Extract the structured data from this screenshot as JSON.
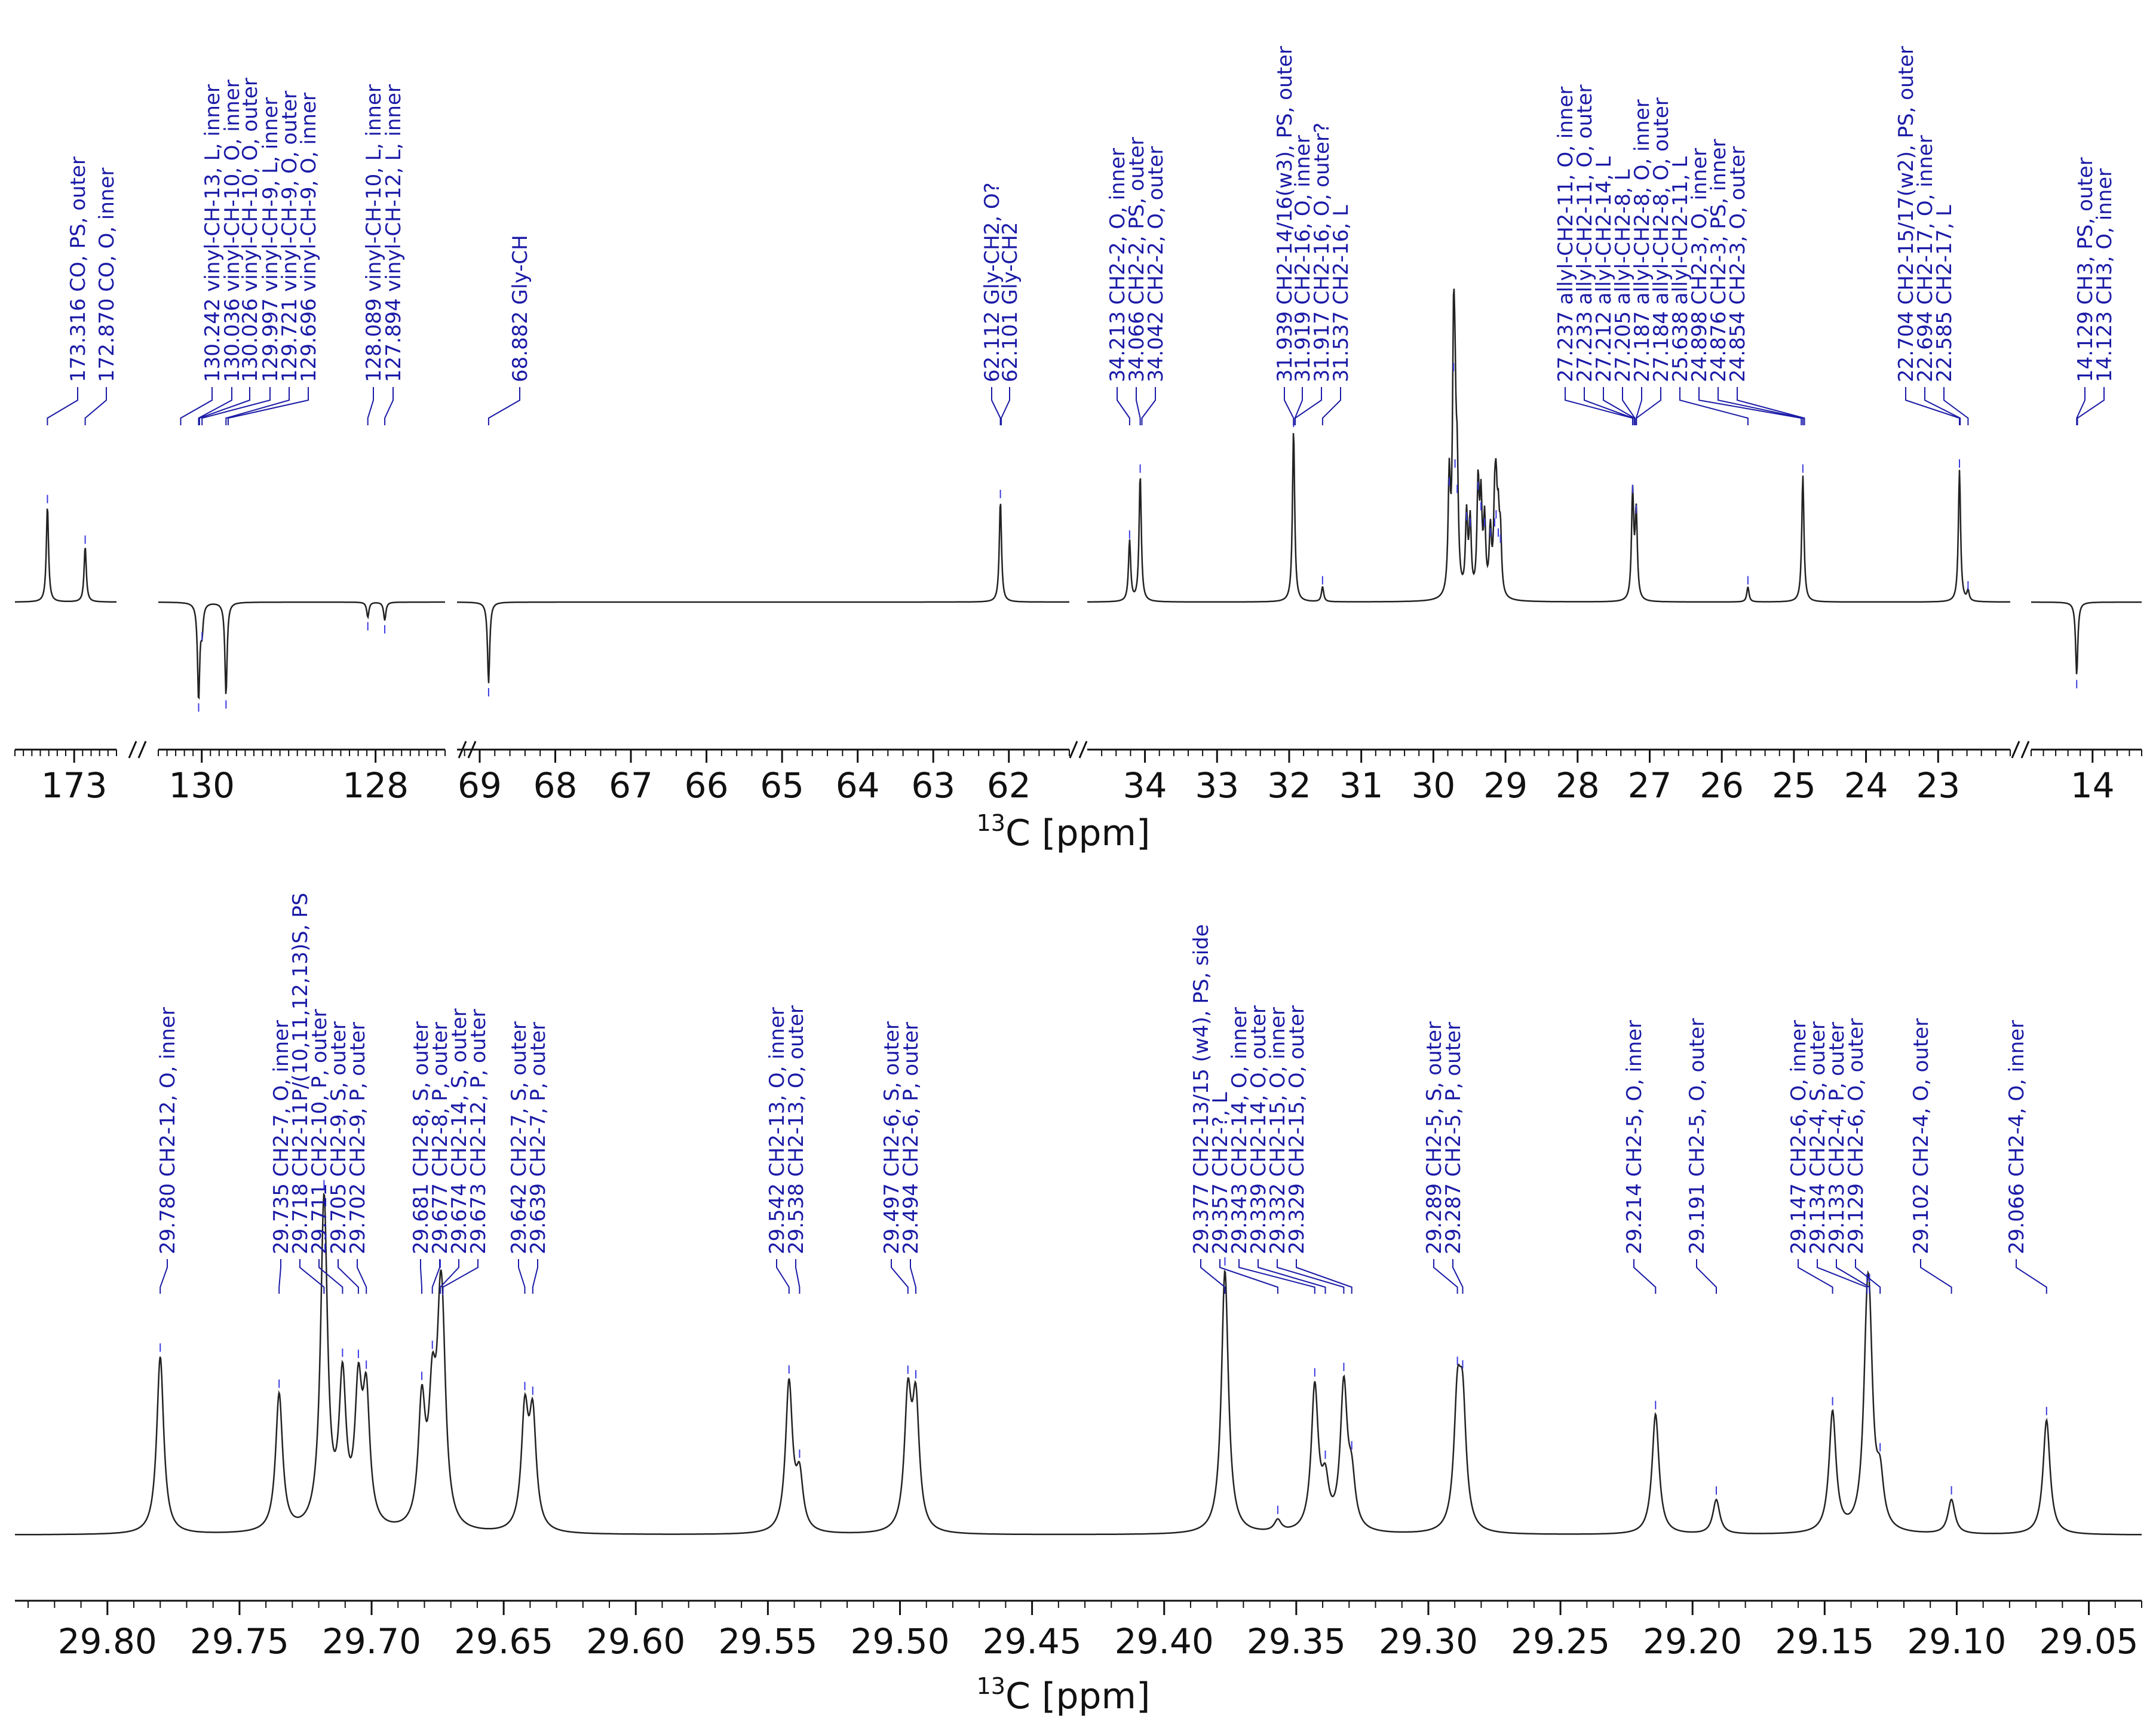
{
  "colors": {
    "label": "#1a1aa6",
    "trace": "#222222",
    "axis": "#111111",
    "marker": "#3a3ae0"
  },
  "chart_data": [
    {
      "type": "line",
      "title": "",
      "xlabel_sup": "13",
      "xlabel_main": "C [ppm]",
      "axis_direction": "decreasing-left-to-right",
      "segments": [
        {
          "xlim": [
            173.7,
            172.5
          ],
          "ticks": [
            "173"
          ],
          "tick_values": [
            173.0
          ]
        },
        {
          "xlim": [
            130.5,
            127.2
          ],
          "ticks": [
            "130",
            "128"
          ],
          "tick_values": [
            130.0,
            128.0
          ]
        },
        {
          "xlim": [
            69.3,
            61.2
          ],
          "ticks": [
            "69",
            "68",
            "67",
            "66",
            "65",
            "64",
            "63",
            "62"
          ],
          "tick_values": [
            69,
            68,
            67,
            66,
            65,
            64,
            63,
            62
          ]
        },
        {
          "xlim": [
            34.8,
            22.0
          ],
          "ticks": [
            "34",
            "33",
            "32",
            "31",
            "30",
            "29",
            "28",
            "27",
            "26",
            "25",
            "24",
            "23"
          ],
          "tick_values": [
            34,
            33,
            32,
            31,
            30,
            29,
            28,
            27,
            26,
            25,
            24,
            23
          ]
        },
        {
          "xlim": [
            14.5,
            13.6
          ],
          "ticks": [
            "14"
          ],
          "tick_values": [
            14
          ]
        }
      ],
      "peak_labels": [
        {
          "ppm": 173.316,
          "text": "173.316 CO, PS, outer"
        },
        {
          "ppm": 172.87,
          "text": "172.870 CO, O, inner"
        },
        {
          "ppm": 130.242,
          "text": "130.242 vinyl-CH-13, L, inner"
        },
        {
          "ppm": 130.036,
          "text": "130.036 vinyl-CH-10, O, inner"
        },
        {
          "ppm": 130.026,
          "text": "130.026 vinyl-CH-10, O, outer"
        },
        {
          "ppm": 129.997,
          "text": "129.997 vinyl-CH-9, L, inner"
        },
        {
          "ppm": 129.721,
          "text": "129.721 vinyl-CH-9, O, outer"
        },
        {
          "ppm": 129.696,
          "text": "129.696 vinyl-CH-9, O, inner"
        },
        {
          "ppm": 128.089,
          "text": "128.089 vinyl-CH-10, L, inner"
        },
        {
          "ppm": 127.894,
          "text": "127.894 vinyl-CH-12, L, inner"
        },
        {
          "ppm": 68.882,
          "text": "68.882 Gly-CH"
        },
        {
          "ppm": 62.112,
          "text": "62.112 Gly-CH2, O?"
        },
        {
          "ppm": 62.101,
          "text": "62.101 Gly-CH2"
        },
        {
          "ppm": 34.213,
          "text": "34.213 CH2-2, O, inner"
        },
        {
          "ppm": 34.066,
          "text": "34.066 CH2-2, PS, outer"
        },
        {
          "ppm": 34.042,
          "text": "34.042 CH2-2, O, outer"
        },
        {
          "ppm": 31.939,
          "text": "31.939 CH2-14/16(w3), PS, outer"
        },
        {
          "ppm": 31.919,
          "text": "31.919 CH2-16, O, inner"
        },
        {
          "ppm": 31.917,
          "text": "31.917 CH2-16, O, outer?"
        },
        {
          "ppm": 31.537,
          "text": "31.537 CH2-16, L"
        },
        {
          "ppm": 27.237,
          "text": "27.237 allyl-CH2-11, O, inner"
        },
        {
          "ppm": 27.233,
          "text": "27.233 allyl-CH2-11, O, outer"
        },
        {
          "ppm": 27.212,
          "text": "27.212 allyl-CH2-14, L"
        },
        {
          "ppm": 27.205,
          "text": "27.205 allyl-CH2-8, L"
        },
        {
          "ppm": 27.187,
          "text": "27.187 allyl-CH2-8, O, inner"
        },
        {
          "ppm": 27.184,
          "text": "27.184 allyl-CH2-8, O, outer"
        },
        {
          "ppm": 25.638,
          "text": "25.638 allyl-CH2-11, L"
        },
        {
          "ppm": 24.898,
          "text": "24.898 CH2-3, O, inner"
        },
        {
          "ppm": 24.876,
          "text": "24.876 CH2-3, PS, inner"
        },
        {
          "ppm": 24.854,
          "text": "24.854 CH2-3, O, outer"
        },
        {
          "ppm": 22.704,
          "text": "22.704 CH2-15/17(w2), PS, outer"
        },
        {
          "ppm": 22.694,
          "text": "22.694 CH2-17, O, inner"
        },
        {
          "ppm": 22.585,
          "text": "22.585 CH2-17, L"
        },
        {
          "ppm": 14.129,
          "text": "14.129 CH3, PS, outer"
        },
        {
          "ppm": 14.123,
          "text": "14.123 CH3, O, inner"
        }
      ],
      "peaks": [
        {
          "ppm": 173.316,
          "h": 0.95
        },
        {
          "ppm": 172.87,
          "h": 0.55
        },
        {
          "ppm": 130.036,
          "h": -0.95
        },
        {
          "ppm": 129.997,
          "h": -0.25
        },
        {
          "ppm": 129.721,
          "h": -0.92
        },
        {
          "ppm": 128.089,
          "h": -0.15
        },
        {
          "ppm": 127.894,
          "h": -0.18
        },
        {
          "ppm": 68.882,
          "h": -0.8
        },
        {
          "ppm": 62.112,
          "h": 1.0
        },
        {
          "ppm": 34.213,
          "h": 0.6
        },
        {
          "ppm": 34.066,
          "h": 1.25
        },
        {
          "ppm": 31.939,
          "h": 1.7
        },
        {
          "ppm": 31.537,
          "h": 0.15
        },
        {
          "ppm": 29.78,
          "h": 1.12
        },
        {
          "ppm": 29.72,
          "h": 2.25
        },
        {
          "ppm": 29.7,
          "h": 1.3
        },
        {
          "ppm": 29.67,
          "h": 1.05
        },
        {
          "ppm": 29.54,
          "h": 0.78
        },
        {
          "ppm": 29.49,
          "h": 0.72
        },
        {
          "ppm": 29.38,
          "h": 1.08
        },
        {
          "ppm": 29.34,
          "h": 0.88
        },
        {
          "ppm": 29.29,
          "h": 0.72
        },
        {
          "ppm": 29.21,
          "h": 0.62
        },
        {
          "ppm": 29.15,
          "h": 0.72
        },
        {
          "ppm": 29.13,
          "h": 0.8
        },
        {
          "ppm": 29.1,
          "h": 0.62
        },
        {
          "ppm": 29.07,
          "h": 0.56
        },
        {
          "ppm": 27.237,
          "h": 1.05
        },
        {
          "ppm": 27.187,
          "h": 0.85
        },
        {
          "ppm": 25.638,
          "h": 0.15
        },
        {
          "ppm": 24.876,
          "h": 1.25
        },
        {
          "ppm": 22.704,
          "h": 1.3
        },
        {
          "ppm": 22.585,
          "h": 0.1
        },
        {
          "ppm": 14.129,
          "h": -0.72
        }
      ]
    },
    {
      "type": "line",
      "title": "",
      "xlabel_sup": "13",
      "xlabel_main": "C [ppm]",
      "xlim": [
        29.835,
        29.03
      ],
      "ticks": [
        "29.80",
        "29.75",
        "29.70",
        "29.65",
        "29.60",
        "29.55",
        "29.50",
        "29.45",
        "29.40",
        "29.35",
        "29.30",
        "29.25",
        "29.20",
        "29.15",
        "29.10",
        "29.05"
      ],
      "tick_values": [
        29.8,
        29.75,
        29.7,
        29.65,
        29.6,
        29.55,
        29.5,
        29.45,
        29.4,
        29.35,
        29.3,
        29.25,
        29.2,
        29.15,
        29.1,
        29.05
      ],
      "peak_labels": [
        {
          "ppm": 29.78,
          "text": "29.780 CH2-12, O, inner"
        },
        {
          "ppm": 29.735,
          "text": "29.735 CH2-7, O, inner"
        },
        {
          "ppm": 29.718,
          "text": "29.718 CH2-11P/(10,11,12,13)S, PS"
        },
        {
          "ppm": 29.711,
          "text": "29.711 CH2-10, P, outer"
        },
        {
          "ppm": 29.705,
          "text": "29.705 CH2-9, S, outer"
        },
        {
          "ppm": 29.702,
          "text": "29.702 CH2-9, P, outer"
        },
        {
          "ppm": 29.681,
          "text": "29.681 CH2-8, S, outer"
        },
        {
          "ppm": 29.677,
          "text": "29.677 CH2-8, P, outer"
        },
        {
          "ppm": 29.674,
          "text": "29.674 CH2-14, S, outer"
        },
        {
          "ppm": 29.673,
          "text": "29.673 CH2-12, P, outer"
        },
        {
          "ppm": 29.642,
          "text": "29.642 CH2-7, S, outer"
        },
        {
          "ppm": 29.639,
          "text": "29.639 CH2-7, P, outer"
        },
        {
          "ppm": 29.542,
          "text": "29.542 CH2-13, O, inner"
        },
        {
          "ppm": 29.538,
          "text": "29.538 CH2-13, O, outer"
        },
        {
          "ppm": 29.497,
          "text": "29.497 CH2-6, S, outer"
        },
        {
          "ppm": 29.494,
          "text": "29.494 CH2-6, P, outer"
        },
        {
          "ppm": 29.377,
          "text": "29.377 CH2-13/15 (w4), PS, side"
        },
        {
          "ppm": 29.357,
          "text": "29.357 CH2-?, L"
        },
        {
          "ppm": 29.343,
          "text": "29.343 CH2-14, O, inner"
        },
        {
          "ppm": 29.339,
          "text": "29.339 CH2-14, O, outer"
        },
        {
          "ppm": 29.332,
          "text": "29.332 CH2-15, O, inner"
        },
        {
          "ppm": 29.329,
          "text": "29.329 CH2-15, O, outer"
        },
        {
          "ppm": 29.289,
          "text": "29.289 CH2-5, S, outer"
        },
        {
          "ppm": 29.287,
          "text": "29.287 CH2-5, P, outer"
        },
        {
          "ppm": 29.214,
          "text": "29.214 CH2-5, O, inner"
        },
        {
          "ppm": 29.191,
          "text": "29.191 CH2-5, O, outer"
        },
        {
          "ppm": 29.147,
          "text": "29.147 CH2-6, O, inner"
        },
        {
          "ppm": 29.134,
          "text": "29.134 CH2-4, S, outer"
        },
        {
          "ppm": 29.133,
          "text": "29.133 CH2-4, P, outer"
        },
        {
          "ppm": 29.129,
          "text": "29.129 CH2-6, O, outer"
        },
        {
          "ppm": 29.102,
          "text": "29.102 CH2-4, O, outer"
        },
        {
          "ppm": 29.066,
          "text": "29.066 CH2-4, O, inner"
        }
      ],
      "peaks": [
        {
          "ppm": 29.78,
          "h": 0.62
        },
        {
          "ppm": 29.735,
          "h": 0.48
        },
        {
          "ppm": 29.718,
          "h": 1.15
        },
        {
          "ppm": 29.711,
          "h": 0.5
        },
        {
          "ppm": 29.705,
          "h": 0.45
        },
        {
          "ppm": 29.702,
          "h": 0.43
        },
        {
          "ppm": 29.681,
          "h": 0.42
        },
        {
          "ppm": 29.677,
          "h": 0.4
        },
        {
          "ppm": 29.674,
          "h": 0.55
        },
        {
          "ppm": 29.673,
          "h": 0.35
        },
        {
          "ppm": 29.642,
          "h": 0.4
        },
        {
          "ppm": 29.639,
          "h": 0.38
        },
        {
          "ppm": 29.542,
          "h": 0.52
        },
        {
          "ppm": 29.538,
          "h": 0.18
        },
        {
          "ppm": 29.497,
          "h": 0.45
        },
        {
          "ppm": 29.494,
          "h": 0.43
        },
        {
          "ppm": 29.377,
          "h": 0.92
        },
        {
          "ppm": 29.357,
          "h": 0.04
        },
        {
          "ppm": 29.343,
          "h": 0.5
        },
        {
          "ppm": 29.339,
          "h": 0.15
        },
        {
          "ppm": 29.332,
          "h": 0.5
        },
        {
          "ppm": 29.329,
          "h": 0.16
        },
        {
          "ppm": 29.289,
          "h": 0.42
        },
        {
          "ppm": 29.287,
          "h": 0.4
        },
        {
          "ppm": 29.214,
          "h": 0.42
        },
        {
          "ppm": 29.191,
          "h": 0.12
        },
        {
          "ppm": 29.147,
          "h": 0.42
        },
        {
          "ppm": 29.134,
          "h": 0.5
        },
        {
          "ppm": 29.133,
          "h": 0.48
        },
        {
          "ppm": 29.129,
          "h": 0.16
        },
        {
          "ppm": 29.102,
          "h": 0.12
        },
        {
          "ppm": 29.066,
          "h": 0.4
        }
      ]
    }
  ]
}
